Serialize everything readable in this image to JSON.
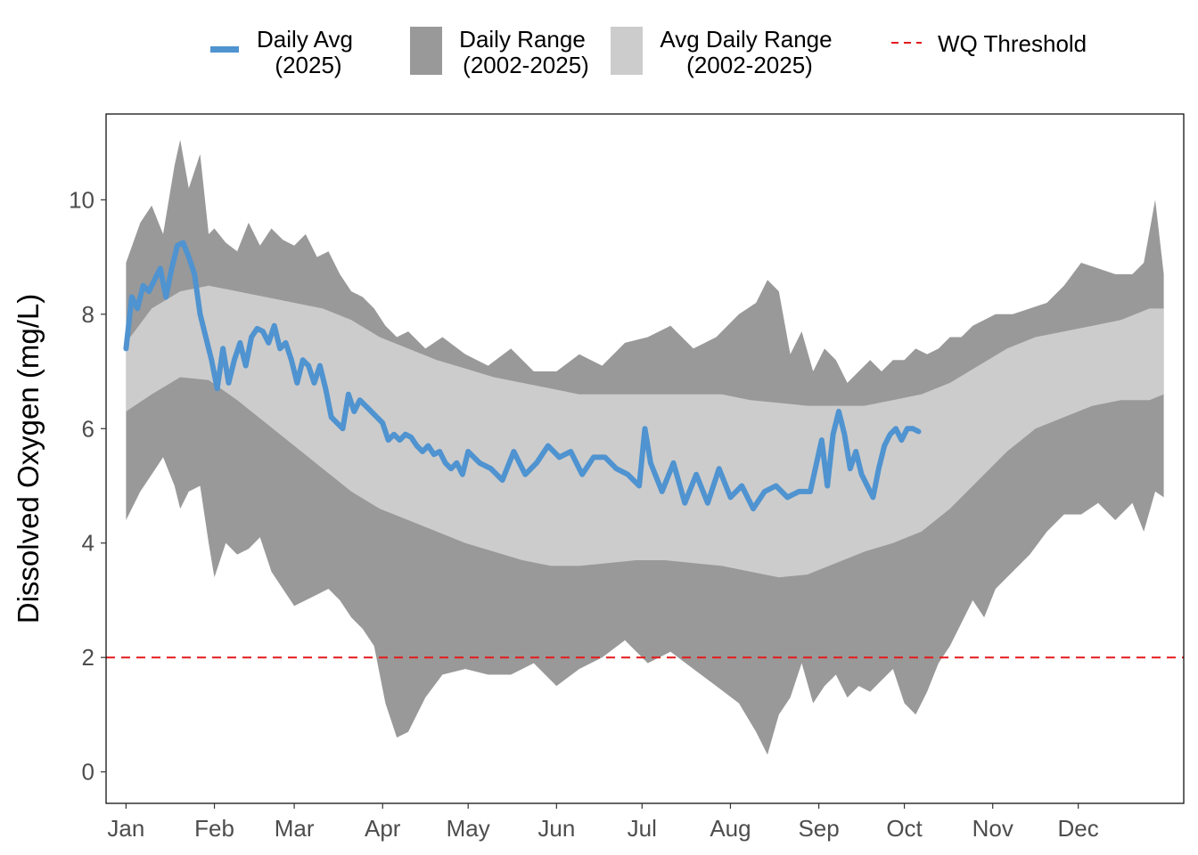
{
  "chart_data": {
    "type": "area",
    "title": "",
    "xlabel": "",
    "ylabel": "Dissolved Oxygen (mg/L)",
    "x_unit": "day of year",
    "xlim": [
      -6,
      372
    ],
    "ylim": [
      -0.55,
      11.5
    ],
    "y_ticks": [
      0,
      2,
      4,
      6,
      8,
      10
    ],
    "x_ticks": [
      {
        "label": "Jan",
        "day": 1
      },
      {
        "label": "Feb",
        "day": 32
      },
      {
        "label": "Mar",
        "day": 60
      },
      {
        "label": "Apr",
        "day": 91
      },
      {
        "label": "May",
        "day": 121
      },
      {
        "label": "Jun",
        "day": 152
      },
      {
        "label": "Jul",
        "day": 182
      },
      {
        "label": "Aug",
        "day": 213
      },
      {
        "label": "Sep",
        "day": 244
      },
      {
        "label": "Oct",
        "day": 274
      },
      {
        "label": "Nov",
        "day": 305
      },
      {
        "label": "Dec",
        "day": 335
      }
    ],
    "legend": {
      "position": "top",
      "entries": [
        {
          "line1": "Daily Avg",
          "line2": "(2025)",
          "kind": "line",
          "color": "#4f93d0"
        },
        {
          "line1": "Daily Range",
          "line2": "(2002-2025)",
          "kind": "fill",
          "color": "#999999"
        },
        {
          "line1": "Avg Daily Range",
          "line2": "(2002-2025)",
          "kind": "fill",
          "color": "#cccccc"
        },
        {
          "line1": "WQ Threshold",
          "line2": "",
          "kind": "dashed",
          "color": "#e41a1c"
        }
      ]
    },
    "threshold": {
      "value": 2,
      "color": "#e41a1c"
    },
    "series": [
      {
        "name": "Daily Range (2002-2025)",
        "color": "#999999",
        "x": [
          1,
          6,
          10,
          14,
          18,
          20,
          23,
          27,
          30,
          32,
          36,
          40,
          44,
          48,
          52,
          56,
          60,
          64,
          68,
          72,
          76,
          80,
          84,
          88,
          92,
          96,
          100,
          106,
          112,
          120,
          128,
          136,
          144,
          152,
          160,
          168,
          176,
          184,
          192,
          200,
          208,
          216,
          222,
          226,
          230,
          234,
          238,
          242,
          246,
          250,
          254,
          258,
          262,
          266,
          270,
          274,
          278,
          282,
          286,
          290,
          294,
          298,
          302,
          306,
          312,
          318,
          324,
          330,
          336,
          342,
          348,
          354,
          358,
          362,
          365
        ],
        "upper": [
          8.9,
          9.6,
          9.9,
          9.4,
          10.6,
          11.05,
          10.2,
          10.8,
          9.4,
          9.5,
          9.25,
          9.1,
          9.6,
          9.2,
          9.5,
          9.3,
          9.2,
          9.4,
          9.0,
          9.1,
          8.7,
          8.4,
          8.3,
          8.1,
          7.8,
          7.6,
          7.7,
          7.4,
          7.6,
          7.3,
          7.1,
          7.4,
          7.0,
          7.0,
          7.3,
          7.1,
          7.5,
          7.6,
          7.8,
          7.4,
          7.6,
          8.0,
          8.2,
          8.6,
          8.4,
          7.3,
          7.7,
          7.0,
          7.4,
          7.2,
          6.8,
          7.0,
          7.2,
          7.0,
          7.2,
          7.2,
          7.4,
          7.3,
          7.4,
          7.6,
          7.6,
          7.8,
          7.9,
          8.0,
          8.0,
          8.1,
          8.2,
          8.5,
          8.9,
          8.8,
          8.7,
          8.7,
          8.9,
          10.0,
          8.7
        ],
        "lower": [
          4.4,
          4.9,
          5.2,
          5.5,
          5.0,
          4.6,
          4.9,
          5.0,
          4.0,
          3.4,
          4.0,
          3.8,
          3.9,
          4.1,
          3.5,
          3.2,
          2.9,
          3.0,
          3.1,
          3.2,
          3.0,
          2.7,
          2.5,
          2.2,
          1.2,
          0.6,
          0.7,
          1.3,
          1.7,
          1.8,
          1.7,
          1.7,
          1.9,
          1.5,
          1.8,
          2.0,
          2.3,
          1.9,
          2.1,
          1.8,
          1.5,
          1.2,
          0.7,
          0.3,
          1.0,
          1.3,
          1.9,
          1.2,
          1.5,
          1.7,
          1.3,
          1.5,
          1.4,
          1.6,
          1.8,
          1.2,
          1.0,
          1.4,
          1.9,
          2.2,
          2.6,
          3.0,
          2.7,
          3.2,
          3.5,
          3.8,
          4.2,
          4.5,
          4.5,
          4.7,
          4.4,
          4.7,
          4.2,
          4.9,
          4.8
        ]
      },
      {
        "name": "Avg Daily Range (2002-2025)",
        "color": "#cccccc",
        "x": [
          1,
          10,
          20,
          30,
          40,
          50,
          60,
          70,
          80,
          90,
          100,
          110,
          120,
          130,
          140,
          150,
          160,
          170,
          180,
          190,
          200,
          210,
          220,
          230,
          240,
          250,
          260,
          270,
          280,
          290,
          300,
          310,
          320,
          330,
          340,
          350,
          360,
          365
        ],
        "upper": [
          7.5,
          8.1,
          8.4,
          8.5,
          8.4,
          8.3,
          8.2,
          8.1,
          7.9,
          7.6,
          7.4,
          7.2,
          7.05,
          6.9,
          6.8,
          6.7,
          6.6,
          6.6,
          6.6,
          6.6,
          6.6,
          6.6,
          6.5,
          6.45,
          6.4,
          6.4,
          6.4,
          6.5,
          6.6,
          6.8,
          7.1,
          7.4,
          7.6,
          7.7,
          7.8,
          7.9,
          8.1,
          8.1
        ],
        "lower": [
          6.3,
          6.6,
          6.9,
          6.85,
          6.5,
          6.1,
          5.7,
          5.3,
          4.9,
          4.6,
          4.4,
          4.2,
          4.0,
          3.85,
          3.7,
          3.6,
          3.6,
          3.65,
          3.7,
          3.7,
          3.65,
          3.6,
          3.5,
          3.4,
          3.45,
          3.65,
          3.85,
          4.0,
          4.2,
          4.6,
          5.1,
          5.6,
          6.0,
          6.2,
          6.4,
          6.5,
          6.5,
          6.6
        ]
      },
      {
        "name": "Daily Avg (2025)",
        "color": "#4f93d0",
        "x": [
          1,
          3,
          5,
          7,
          9,
          11,
          13,
          15,
          17,
          19,
          21,
          23,
          25,
          27,
          29,
          31,
          33,
          35,
          37,
          39,
          41,
          43,
          45,
          47,
          49,
          51,
          53,
          55,
          57,
          59,
          61,
          63,
          65,
          67,
          69,
          71,
          73,
          75,
          77,
          79,
          81,
          83,
          85,
          87,
          89,
          91,
          93,
          95,
          97,
          99,
          101,
          103,
          105,
          107,
          109,
          111,
          113,
          115,
          117,
          119,
          121,
          125,
          129,
          133,
          137,
          141,
          145,
          149,
          153,
          157,
          161,
          165,
          169,
          173,
          177,
          181,
          183,
          185,
          189,
          193,
          197,
          201,
          205,
          209,
          213,
          217,
          221,
          225,
          229,
          233,
          237,
          241,
          245,
          247,
          249,
          251,
          253,
          255,
          257,
          259,
          261,
          263,
          265,
          267,
          269,
          271,
          273,
          275,
          277,
          279
        ],
        "y": [
          7.4,
          8.3,
          8.1,
          8.5,
          8.4,
          8.6,
          8.8,
          8.3,
          8.8,
          9.2,
          9.25,
          9.0,
          8.7,
          8.0,
          7.6,
          7.2,
          6.7,
          7.4,
          6.8,
          7.2,
          7.5,
          7.1,
          7.6,
          7.75,
          7.7,
          7.5,
          7.8,
          7.4,
          7.5,
          7.2,
          6.8,
          7.2,
          7.1,
          6.8,
          7.1,
          6.7,
          6.2,
          6.1,
          6.0,
          6.6,
          6.3,
          6.5,
          6.4,
          6.3,
          6.2,
          6.1,
          5.8,
          5.9,
          5.8,
          5.9,
          5.85,
          5.7,
          5.6,
          5.7,
          5.55,
          5.6,
          5.4,
          5.3,
          5.4,
          5.2,
          5.6,
          5.4,
          5.3,
          5.1,
          5.6,
          5.2,
          5.4,
          5.7,
          5.5,
          5.6,
          5.2,
          5.5,
          5.5,
          5.3,
          5.2,
          5.0,
          6.0,
          5.4,
          4.9,
          5.4,
          4.7,
          5.2,
          4.7,
          5.3,
          4.8,
          5.0,
          4.6,
          4.9,
          5.0,
          4.8,
          4.9,
          4.9,
          5.8,
          5.0,
          5.9,
          6.3,
          5.9,
          5.3,
          5.6,
          5.2,
          5.0,
          4.8,
          5.3,
          5.7,
          5.9,
          6.0,
          5.8,
          6.0,
          6.0,
          5.95
        ]
      }
    ]
  }
}
